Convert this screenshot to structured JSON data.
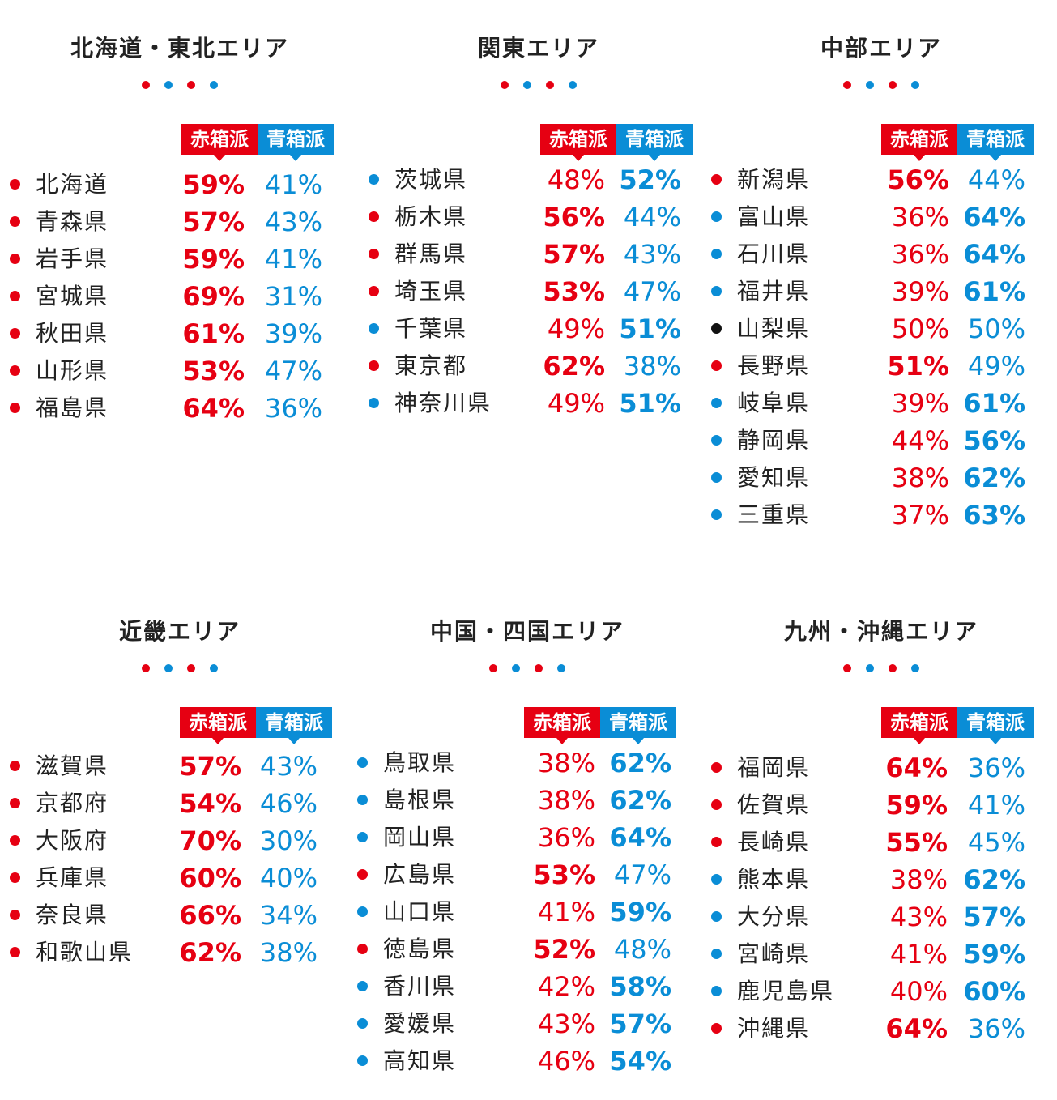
{
  "colors": {
    "red": "#e60012",
    "blue": "#0a8dd6",
    "tie": "#111111"
  },
  "chart_data": {
    "type": "table",
    "legend": {
      "red_label": "赤箱派",
      "blue_label": "青箱派"
    },
    "regions": [
      {
        "name": "北海道・東北エリア",
        "rows": [
          {
            "pref": "北海道",
            "red": "59%",
            "blue": "41%",
            "winner": "red"
          },
          {
            "pref": "青森県",
            "red": "57%",
            "blue": "43%",
            "winner": "red"
          },
          {
            "pref": "岩手県",
            "red": "59%",
            "blue": "41%",
            "winner": "red"
          },
          {
            "pref": "宮城県",
            "red": "69%",
            "blue": "31%",
            "winner": "red"
          },
          {
            "pref": "秋田県",
            "red": "61%",
            "blue": "39%",
            "winner": "red"
          },
          {
            "pref": "山形県",
            "red": "53%",
            "blue": "47%",
            "winner": "red"
          },
          {
            "pref": "福島県",
            "red": "64%",
            "blue": "36%",
            "winner": "red"
          }
        ]
      },
      {
        "name": "関東エリア",
        "rows": [
          {
            "pref": "茨城県",
            "red": "48%",
            "blue": "52%",
            "winner": "blue"
          },
          {
            "pref": "栃木県",
            "red": "56%",
            "blue": "44%",
            "winner": "red"
          },
          {
            "pref": "群馬県",
            "red": "57%",
            "blue": "43%",
            "winner": "red"
          },
          {
            "pref": "埼玉県",
            "red": "53%",
            "blue": "47%",
            "winner": "red"
          },
          {
            "pref": "千葉県",
            "red": "49%",
            "blue": "51%",
            "winner": "blue"
          },
          {
            "pref": "東京都",
            "red": "62%",
            "blue": "38%",
            "winner": "red"
          },
          {
            "pref": "神奈川県",
            "red": "49%",
            "blue": "51%",
            "winner": "blue"
          }
        ]
      },
      {
        "name": "中部エリア",
        "rows": [
          {
            "pref": "新潟県",
            "red": "56%",
            "blue": "44%",
            "winner": "red"
          },
          {
            "pref": "富山県",
            "red": "36%",
            "blue": "64%",
            "winner": "blue"
          },
          {
            "pref": "石川県",
            "red": "36%",
            "blue": "64%",
            "winner": "blue"
          },
          {
            "pref": "福井県",
            "red": "39%",
            "blue": "61%",
            "winner": "blue"
          },
          {
            "pref": "山梨県",
            "red": "50%",
            "blue": "50%",
            "winner": "tie"
          },
          {
            "pref": "長野県",
            "red": "51%",
            "blue": "49%",
            "winner": "red"
          },
          {
            "pref": "岐阜県",
            "red": "39%",
            "blue": "61%",
            "winner": "blue"
          },
          {
            "pref": "静岡県",
            "red": "44%",
            "blue": "56%",
            "winner": "blue"
          },
          {
            "pref": "愛知県",
            "red": "38%",
            "blue": "62%",
            "winner": "blue"
          },
          {
            "pref": "三重県",
            "red": "37%",
            "blue": "63%",
            "winner": "blue"
          }
        ]
      },
      {
        "name": "近畿エリア",
        "rows": [
          {
            "pref": "滋賀県",
            "red": "57%",
            "blue": "43%",
            "winner": "red"
          },
          {
            "pref": "京都府",
            "red": "54%",
            "blue": "46%",
            "winner": "red"
          },
          {
            "pref": "大阪府",
            "red": "70%",
            "blue": "30%",
            "winner": "red"
          },
          {
            "pref": "兵庫県",
            "red": "60%",
            "blue": "40%",
            "winner": "red"
          },
          {
            "pref": "奈良県",
            "red": "66%",
            "blue": "34%",
            "winner": "red"
          },
          {
            "pref": "和歌山県",
            "red": "62%",
            "blue": "38%",
            "winner": "red"
          }
        ]
      },
      {
        "name": "中国・四国エリア",
        "rows": [
          {
            "pref": "鳥取県",
            "red": "38%",
            "blue": "62%",
            "winner": "blue"
          },
          {
            "pref": "島根県",
            "red": "38%",
            "blue": "62%",
            "winner": "blue"
          },
          {
            "pref": "岡山県",
            "red": "36%",
            "blue": "64%",
            "winner": "blue"
          },
          {
            "pref": "広島県",
            "red": "53%",
            "blue": "47%",
            "winner": "red"
          },
          {
            "pref": "山口県",
            "red": "41%",
            "blue": "59%",
            "winner": "blue"
          },
          {
            "pref": "徳島県",
            "red": "52%",
            "blue": "48%",
            "winner": "red"
          },
          {
            "pref": "香川県",
            "red": "42%",
            "blue": "58%",
            "winner": "blue"
          },
          {
            "pref": "愛媛県",
            "red": "43%",
            "blue": "57%",
            "winner": "blue"
          },
          {
            "pref": "高知県",
            "red": "46%",
            "blue": "54%",
            "winner": "blue"
          }
        ]
      },
      {
        "name": "九州・沖縄エリア",
        "rows": [
          {
            "pref": "福岡県",
            "red": "64%",
            "blue": "36%",
            "winner": "red"
          },
          {
            "pref": "佐賀県",
            "red": "59%",
            "blue": "41%",
            "winner": "red"
          },
          {
            "pref": "長崎県",
            "red": "55%",
            "blue": "45%",
            "winner": "red"
          },
          {
            "pref": "熊本県",
            "red": "38%",
            "blue": "62%",
            "winner": "blue"
          },
          {
            "pref": "大分県",
            "red": "43%",
            "blue": "57%",
            "winner": "blue"
          },
          {
            "pref": "宮崎県",
            "red": "41%",
            "blue": "59%",
            "winner": "blue"
          },
          {
            "pref": "鹿児島県",
            "red": "40%",
            "blue": "60%",
            "winner": "blue"
          },
          {
            "pref": "沖縄県",
            "red": "64%",
            "blue": "36%",
            "winner": "red"
          }
        ]
      }
    ]
  }
}
